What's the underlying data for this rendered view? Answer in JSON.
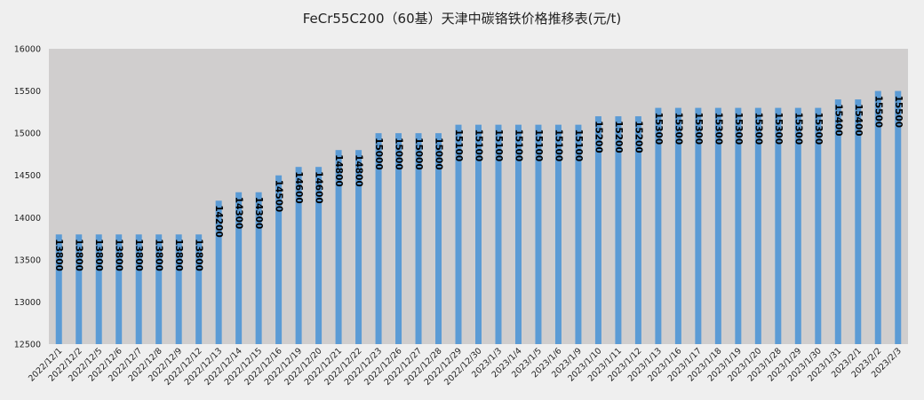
{
  "chart_data": {
    "type": "bar",
    "title": "FeCr55C200（60基）天津中碳铬铁价格推移表(元/t)",
    "xlabel": "",
    "ylabel": "",
    "ylim": [
      12500,
      16000
    ],
    "y_ticks": [
      12500,
      13000,
      13500,
      14000,
      14500,
      15000,
      15500,
      16000
    ],
    "grid": false,
    "legend": "none",
    "colors": {
      "bar": "#5b9bd5",
      "plot_bg": "#d0cece",
      "page_bg": "#efefef",
      "label": "#000000"
    },
    "categories": [
      "2022/12/1",
      "2022/12/2",
      "2022/12/5",
      "2022/12/6",
      "2022/12/7",
      "2022/12/8",
      "2022/12/9",
      "2022/12/12",
      "2022/12/13",
      "2022/12/14",
      "2022/12/15",
      "2022/12/16",
      "2022/12/19",
      "2022/12/20",
      "2022/12/21",
      "2022/12/22",
      "2022/12/23",
      "2022/12/26",
      "2022/12/27",
      "2022/12/28",
      "2022/12/29",
      "2022/12/30",
      "2023/1/3",
      "2023/1/4",
      "2023/1/5",
      "2023/1/6",
      "2023/1/9",
      "2023/1/10",
      "2023/1/11",
      "2023/1/12",
      "2023/1/13",
      "2023/1/16",
      "2023/1/17",
      "2023/1/18",
      "2023/1/19",
      "2023/1/20",
      "2023/1/28",
      "2023/1/29",
      "2023/1/30",
      "2023/1/31",
      "2023/2/1",
      "2023/2/2",
      "2023/2/3"
    ],
    "values": [
      13800,
      13800,
      13800,
      13800,
      13800,
      13800,
      13800,
      13800,
      14200,
      14300,
      14300,
      14500,
      14600,
      14600,
      14800,
      14800,
      15000,
      15000,
      15000,
      15000,
      15100,
      15100,
      15100,
      15100,
      15100,
      15100,
      15100,
      15200,
      15200,
      15200,
      15300,
      15300,
      15300,
      15300,
      15300,
      15300,
      15300,
      15300,
      15300,
      15400,
      15400,
      15500,
      15500
    ]
  }
}
